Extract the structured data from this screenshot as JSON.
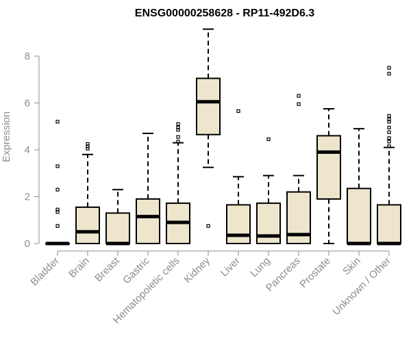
{
  "chart_data": {
    "type": "boxplot",
    "title": "ENSG00000258628 - RP11-492D6.3",
    "xlabel": "",
    "ylabel": "Expression",
    "ylim": [
      0,
      9.4
    ],
    "yticks": [
      0,
      2,
      4,
      6,
      8
    ],
    "box_fill": "#ede6cc",
    "axis_color": "#8c8c8c",
    "categories": [
      "Bladder",
      "Brain",
      "Breast",
      "Gastric",
      "Hematopoietic cells",
      "Kidney",
      "Liver",
      "Lung",
      "Pancreas",
      "Prostate",
      "Skin",
      "Unknown / Other"
    ],
    "boxes": [
      {
        "min": 0,
        "q1": 0,
        "median": 0,
        "q3": 0,
        "max": 0,
        "outliers": [
          0.75,
          1.35,
          1.45,
          2.3,
          3.3,
          5.2
        ]
      },
      {
        "min": 0,
        "q1": 0,
        "median": 0.5,
        "q3": 1.55,
        "max": 3.8,
        "outliers": [
          4.05,
          4.15,
          4.25
        ]
      },
      {
        "min": 0,
        "q1": 0,
        "median": 0,
        "q3": 1.3,
        "max": 2.3,
        "outliers": []
      },
      {
        "min": 0,
        "q1": 0,
        "median": 1.15,
        "q3": 1.9,
        "max": 4.7,
        "outliers": []
      },
      {
        "min": 0,
        "q1": 0,
        "median": 0.9,
        "q3": 1.72,
        "max": 4.3,
        "outliers": [
          4.35,
          4.55,
          4.85,
          4.95,
          5.1
        ]
      },
      {
        "min": 3.25,
        "q1": 4.65,
        "median": 6.05,
        "q3": 7.05,
        "max": 9.15,
        "outliers": [
          0.75
        ]
      },
      {
        "min": 0,
        "q1": 0,
        "median": 0.35,
        "q3": 1.65,
        "max": 2.85,
        "outliers": [
          5.65
        ]
      },
      {
        "min": 0,
        "q1": 0,
        "median": 0.32,
        "q3": 1.72,
        "max": 2.9,
        "outliers": [
          4.45
        ]
      },
      {
        "min": 0,
        "q1": 0,
        "median": 0.38,
        "q3": 2.2,
        "max": 2.9,
        "outliers": [
          5.95,
          6.3
        ]
      },
      {
        "min": 0,
        "q1": 1.9,
        "median": 3.9,
        "q3": 4.6,
        "max": 5.75,
        "outliers": []
      },
      {
        "min": 0,
        "q1": 0,
        "median": 0,
        "q3": 2.35,
        "max": 4.9,
        "outliers": []
      },
      {
        "min": 0,
        "q1": 0,
        "median": 0,
        "q3": 1.65,
        "max": 4.1,
        "outliers": [
          4.15,
          4.35,
          4.5,
          4.75,
          4.95,
          5.2,
          5.3,
          5.45,
          7.25,
          7.5
        ]
      }
    ]
  }
}
